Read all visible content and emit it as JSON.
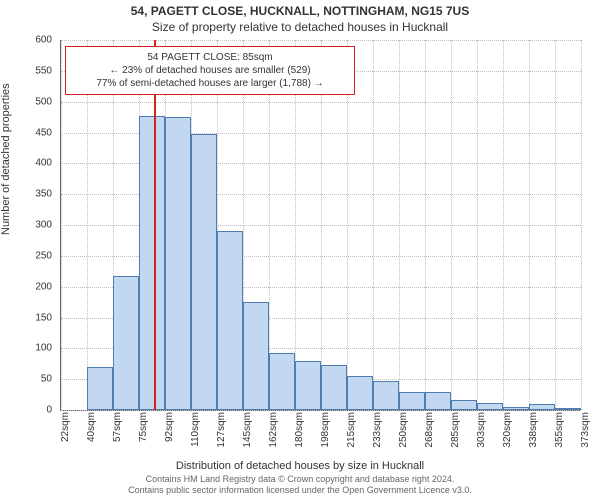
{
  "header": {
    "title_line1": "54, PAGETT CLOSE, HUCKNALL, NOTTINGHAM, NG15 7US",
    "title_line2": "Size of property relative to detached houses in Hucknall"
  },
  "axes": {
    "ylabel": "Number of detached properties",
    "xlabel": "Distribution of detached houses by size in Hucknall"
  },
  "footer": {
    "line1": "Contains HM Land Registry data © Crown copyright and database right 2024.",
    "line2": "Contains public sector information licensed under the Open Government Licence v3.0."
  },
  "chart": {
    "type": "histogram",
    "ylim": [
      0,
      600
    ],
    "yticks": [
      0,
      50,
      100,
      150,
      200,
      250,
      300,
      350,
      400,
      450,
      500,
      550,
      600
    ],
    "xtick_labels": [
      "22sqm",
      "40sqm",
      "57sqm",
      "75sqm",
      "92sqm",
      "110sqm",
      "127sqm",
      "145sqm",
      "162sqm",
      "180sqm",
      "198sqm",
      "215sqm",
      "233sqm",
      "250sqm",
      "268sqm",
      "285sqm",
      "303sqm",
      "320sqm",
      "338sqm",
      "355sqm",
      "373sqm"
    ],
    "values": [
      0,
      70,
      218,
      477,
      475,
      448,
      290,
      175,
      93,
      80,
      73,
      55,
      47,
      30,
      30,
      17,
      12,
      5,
      10,
      3
    ],
    "bar_fill": "#c2d7f0",
    "bar_stroke": "#4f7cb1",
    "background": "#ffffff",
    "grid_color": "#bfbfbf",
    "bar_width_ratio": 1.0,
    "tick_fontsize": 10,
    "label_fontsize": 11,
    "title_fontsize": 12
  },
  "marker": {
    "position_sqm": 85,
    "color": "#d02323"
  },
  "annotation": {
    "line1": "54 PAGETT CLOSE: 85sqm",
    "line2": "← 23% of detached houses are smaller (529)",
    "line3": "77% of semi-detached houses are larger (1,788) →",
    "border_color": "#d02323",
    "bg_color": "#ffffff",
    "fontsize": 10
  }
}
